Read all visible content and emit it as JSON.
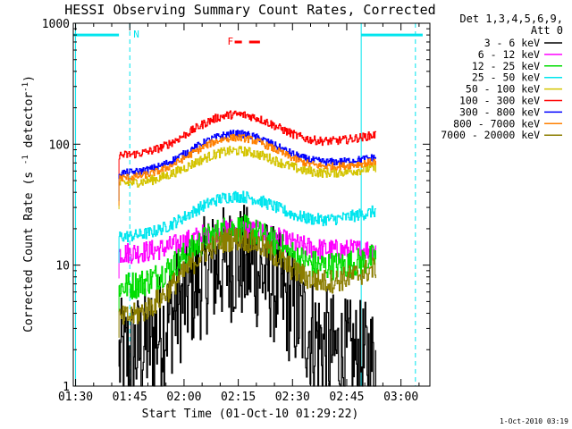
{
  "chart_data": {
    "type": "line",
    "title": "HESSI Observing Summary Count Rates, Corrected",
    "ylabel": "Corrected Count Rate (s^-1 detector^-1)",
    "xlabel": "Start Time (01-Oct-10 01:29:22)",
    "yscale": "log",
    "ylim": [
      1,
      1000
    ],
    "xlim": [
      "01:29",
      "03:08"
    ],
    "x_ticks": [
      "01:30",
      "01:45",
      "02:00",
      "02:15",
      "02:30",
      "02:45",
      "03:00"
    ],
    "y_ticks": [
      "1",
      "10",
      "100",
      "1000"
    ],
    "grid": false,
    "legend_position": "right",
    "legend_header": [
      "Det 1,3,4,5,6,9,",
      "Att 0"
    ],
    "timestamp": "1-Oct-2010 03:19",
    "flag_label": "F",
    "flag_color": "#ff0000",
    "night_marker_label": "N",
    "night_marker_color": "#00e5ee",
    "data_start": "01:42",
    "data_end": "02:53",
    "peak_time": "02:14",
    "series": [
      {
        "name": "3 - 6 keV",
        "color": "#000000",
        "start": 1.6,
        "end": 1.6,
        "peak": 10.5,
        "noise": 0.5
      },
      {
        "name": "6 - 12 keV",
        "color": "#ff00ff",
        "start": 12.5,
        "end": 13.5,
        "peak": 20,
        "noise": 0.09
      },
      {
        "name": "12 - 25 keV",
        "color": "#00dd00",
        "start": 6.5,
        "end": 11.5,
        "peak": 20,
        "noise": 0.12
      },
      {
        "name": "25 - 50 keV",
        "color": "#00e5ee",
        "start": 17,
        "end": 28,
        "peak": 37,
        "noise": 0.05
      },
      {
        "name": "50 - 100 keV",
        "color": "#d4c400",
        "start": 47,
        "end": 64,
        "peak": 88,
        "noise": 0.04
      },
      {
        "name": "100 - 300 keV",
        "color": "#ff0000",
        "start": 80,
        "end": 120,
        "peak": 176,
        "noise": 0.035
      },
      {
        "name": "300 - 800 keV",
        "color": "#0000ff",
        "start": 57,
        "end": 78,
        "peak": 122,
        "noise": 0.03
      },
      {
        "name": "800 - 7000 keV",
        "color": "#ff8000",
        "start": 52,
        "end": 72,
        "peak": 113,
        "noise": 0.03
      },
      {
        "name": "7000 - 20000 keV",
        "color": "#8b7d00",
        "start": 3.5,
        "end": 9.5,
        "peak": 16.5,
        "noise": 0.1
      }
    ]
  }
}
